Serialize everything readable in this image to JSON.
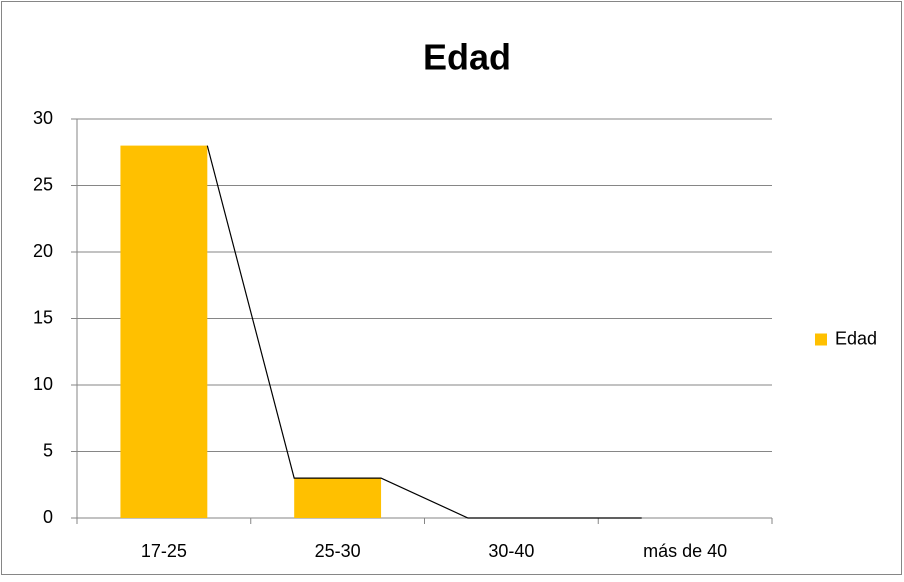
{
  "chart_data": {
    "type": "bar",
    "title": "Edad",
    "categories": [
      "17-25",
      "25-30",
      "30-40",
      "más de 40"
    ],
    "series": [
      {
        "name": "Edad",
        "color": "#ffc000",
        "values": [
          28,
          3,
          0,
          0
        ]
      }
    ],
    "ylim": [
      0,
      30
    ],
    "yticks": [
      0,
      5,
      10,
      15,
      20,
      25,
      30
    ],
    "grid": true,
    "legend": "right"
  }
}
